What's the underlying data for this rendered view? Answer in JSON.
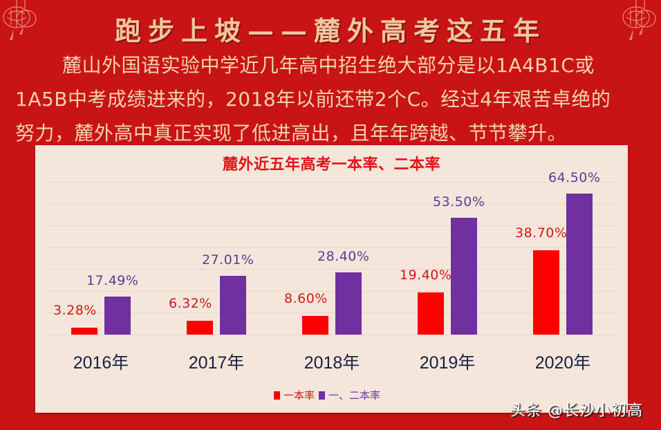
{
  "header": {
    "title": "跑步上坡——麓外高考这五年",
    "decorations": [
      "lantern-icon",
      "lantern-icon"
    ]
  },
  "intro": {
    "paragraph": "麓山外国语实验中学近几年高中招生绝大部分是以1A4B1C或1A5B中考成绩进来的，2018年以前还带2个C。经过4年艰苦卓绝的努力，麓外高中真正实现了低进高出，且年年跨越、节节攀升。",
    "lines": [
      "麓山外国语实验中学近几年高中招生绝大部分是以1A4B1C或",
      "1A5B中考成绩进来的，2018年以前还带2个C。经过4年艰苦卓绝的",
      "努力，麓外高中真正实现了低进高出，且年年跨越、节节攀升。"
    ]
  },
  "colors": {
    "background": "#c81414",
    "panel": "#f5e6dc",
    "series1": "#ff0000",
    "series2": "#7030a0",
    "title": "#e0141a",
    "heading": "#f0c7a0"
  },
  "chart_data": {
    "type": "bar",
    "title": "麓外近五年高考一本率、二本率",
    "categories": [
      "2016年",
      "2017年",
      "2018年",
      "2019年",
      "2020年"
    ],
    "series": [
      {
        "name": "一本率",
        "color": "#ff0000",
        "values": [
          3.28,
          6.32,
          8.6,
          19.4,
          38.7
        ],
        "labels": [
          "3.28%",
          "6.32%",
          "8.60%",
          "19.40%",
          "38.70%"
        ]
      },
      {
        "name": "一、二本率",
        "color": "#7030a0",
        "values": [
          17.49,
          27.01,
          28.4,
          53.5,
          64.5
        ],
        "labels": [
          "17.49%",
          "27.01%",
          "28.40%",
          "53.50%",
          "64.50%"
        ]
      }
    ],
    "xlabel": "",
    "ylabel": "",
    "ylim": [
      0,
      70
    ],
    "grid": true,
    "gridline_step": 10,
    "legend_position": "bottom"
  },
  "legend": {
    "items": [
      {
        "label": "一本率",
        "color": "#ff0000"
      },
      {
        "label": "一、二本率",
        "color": "#7030a0"
      }
    ]
  },
  "watermark": "头条 @长沙小初高"
}
